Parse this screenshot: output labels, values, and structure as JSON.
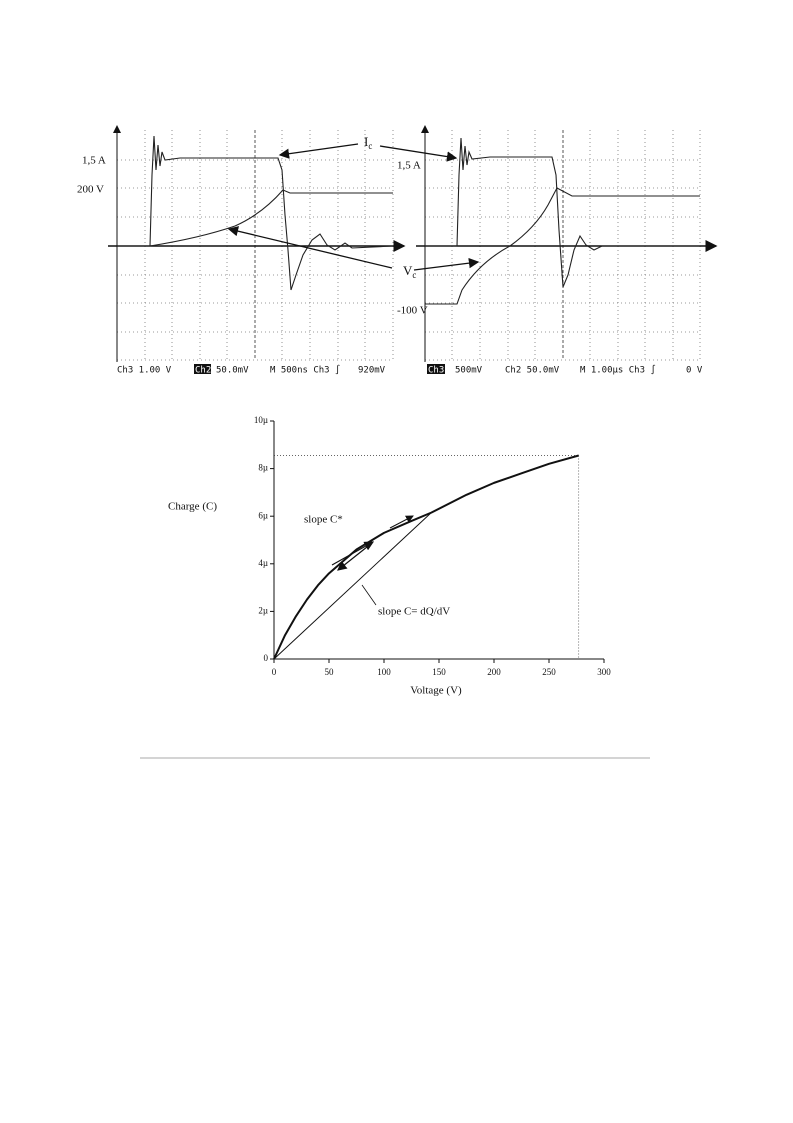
{
  "figure_top": {
    "current_label": {
      "symbol": "I",
      "subscript": "c"
    },
    "voltage_label": {
      "symbol": "V",
      "subscript": "c"
    },
    "left": {
      "levels": [
        "1,5 A",
        "200 V"
      ],
      "footer": [
        "Ch3  1.00 V",
        "Ch2",
        "50.0mV",
        "M  500ns  Ch3 ∫",
        "920mV"
      ]
    },
    "right": {
      "levels": [
        "1,5 A",
        "-100 V"
      ],
      "footer": [
        "Ch3",
        "500mV",
        "Ch2  50.0mV",
        "M 1.00µs  Ch3 ∫",
        "0 V"
      ]
    }
  },
  "chart_data": {
    "type": "line",
    "x_label": "Voltage (V)",
    "y_label": "Charge (C)",
    "x": [
      0,
      10,
      20,
      30,
      40,
      50,
      75,
      100,
      125,
      143,
      175,
      200,
      225,
      250,
      277
    ],
    "values": [
      0,
      1e-06,
      1.8e-06,
      2.5e-06,
      3.1e-06,
      3.6e-06,
      4.6e-06,
      5.3e-06,
      5.8e-06,
      6.15e-06,
      6.9e-06,
      7.4e-06,
      7.8e-06,
      8.2e-06,
      8.55e-06
    ],
    "color": "#111111",
    "secant": {
      "x": [
        0,
        143
      ],
      "values": [
        0,
        6.15e-06
      ]
    },
    "guides": true,
    "annotations": [
      "slope C*",
      "slope C= dQ/dV"
    ],
    "xlim": [
      0,
      300
    ],
    "xticks": [
      0,
      50,
      100,
      150,
      200,
      250,
      300
    ],
    "ylim": [
      0,
      1e-05
    ],
    "yticks": [
      0,
      {
        "value": 2e-06,
        "label": "2µ"
      },
      {
        "value": 4e-06,
        "label": "4µ"
      },
      {
        "value": 6e-06,
        "label": "6µ"
      },
      {
        "value": 8e-06,
        "label": "8µ"
      },
      {
        "value": 1e-05,
        "label": "10µ"
      }
    ]
  }
}
